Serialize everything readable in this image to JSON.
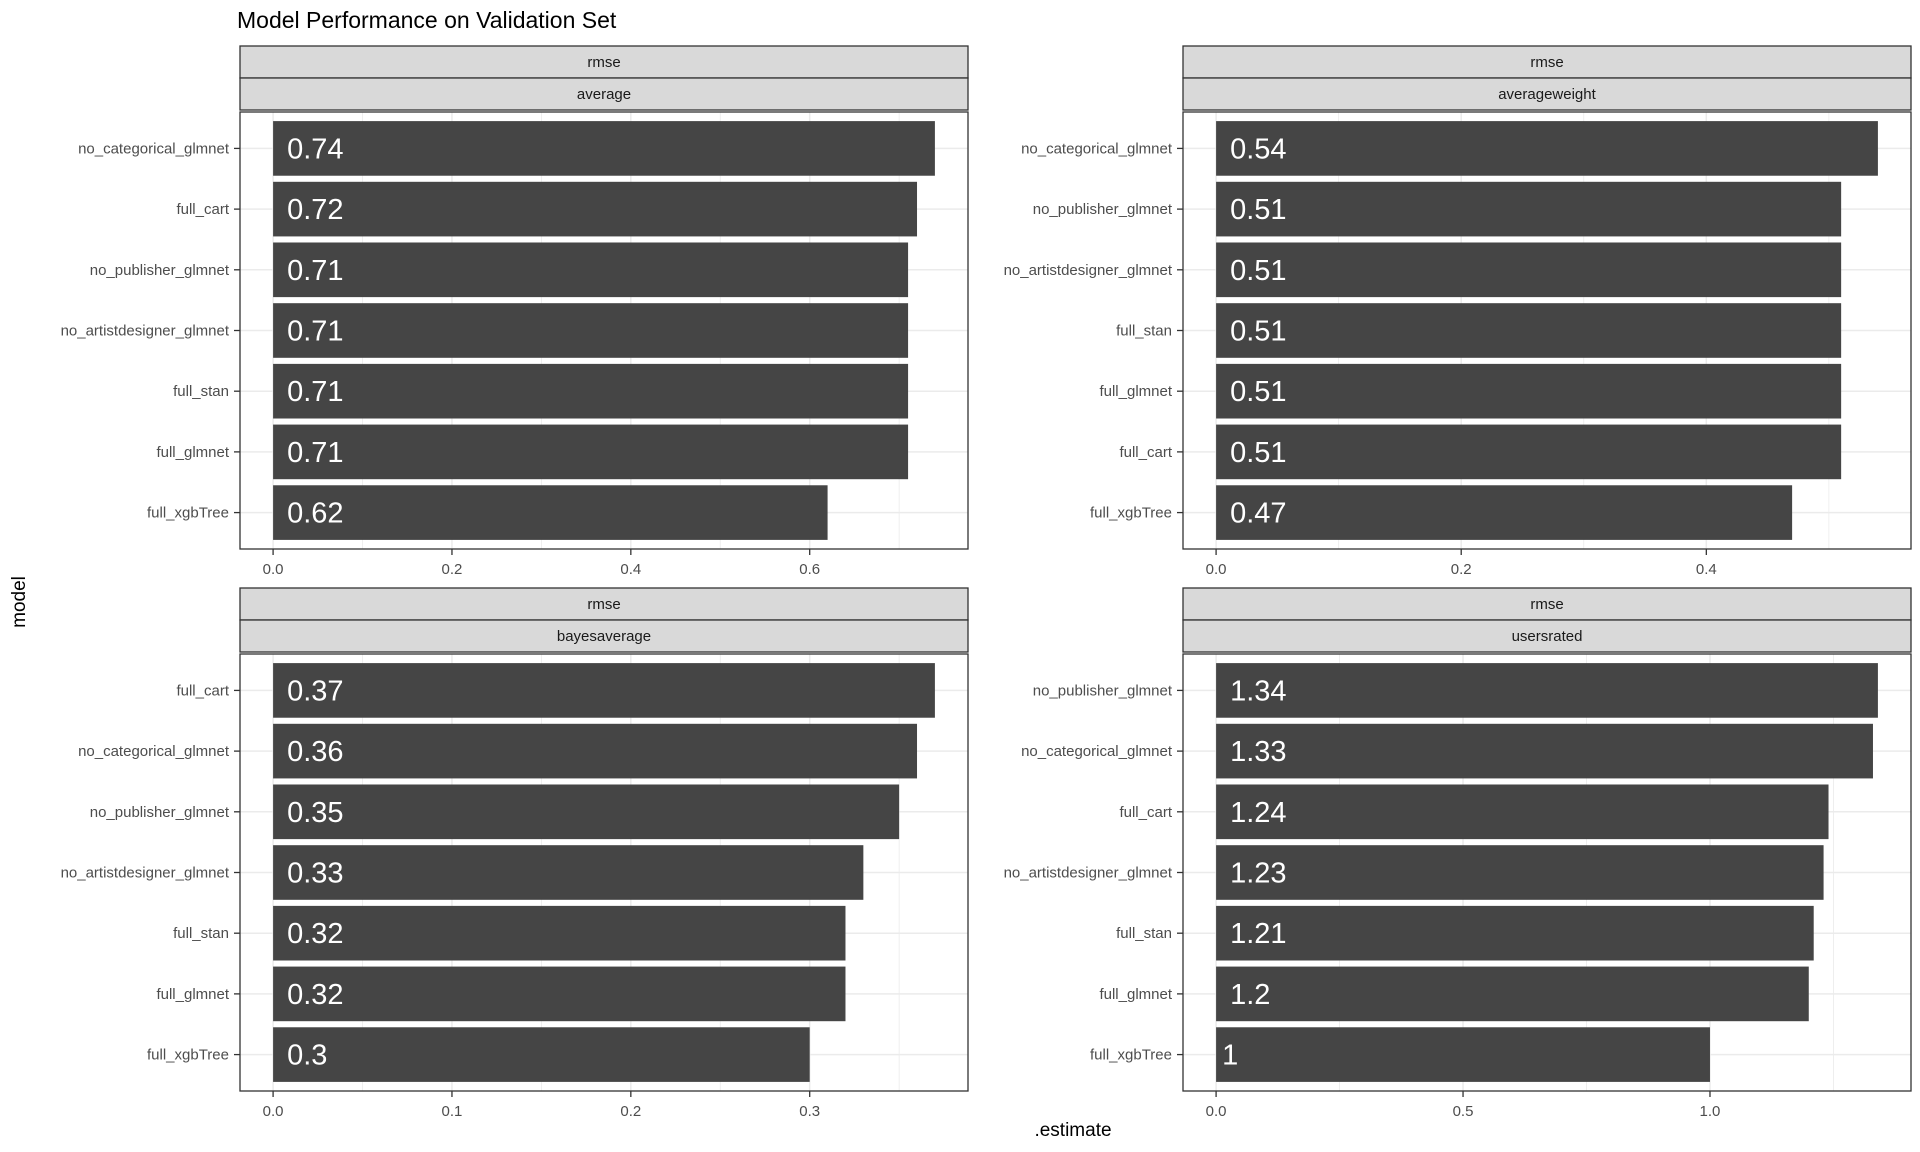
{
  "title": "Model Performance on Validation Set",
  "xlabel": ".estimate",
  "ylabel": "model",
  "colors": {
    "bar": "#454545",
    "bar_label": "#ffffff",
    "strip_fill": "#d9d9d9",
    "grid_major": "#ebebeb",
    "panel_border": "#333333"
  },
  "chart_data": [
    {
      "type": "bar",
      "orientation": "horizontal",
      "strip": [
        "rmse",
        "average"
      ],
      "categories": [
        "no_categorical_glmnet",
        "full_cart",
        "no_publisher_glmnet",
        "no_artistdesigner_glmnet",
        "full_stan",
        "full_glmnet",
        "full_xgbTree"
      ],
      "values": [
        0.74,
        0.72,
        0.71,
        0.71,
        0.71,
        0.71,
        0.62
      ],
      "labels": [
        "0.74",
        "0.72",
        "0.71",
        "0.71",
        "0.71",
        "0.71",
        "0.62"
      ],
      "xlim": [
        -0.037,
        0.777
      ],
      "xticks": [
        0,
        0.2,
        0.4,
        0.6
      ],
      "xtick_labels": [
        "0.0",
        "0.2",
        "0.4",
        "0.6"
      ],
      "grid": true
    },
    {
      "type": "bar",
      "orientation": "horizontal",
      "strip": [
        "rmse",
        "averageweight"
      ],
      "categories": [
        "no_categorical_glmnet",
        "no_publisher_glmnet",
        "no_artistdesigner_glmnet",
        "full_stan",
        "full_glmnet",
        "full_cart",
        "full_xgbTree"
      ],
      "values": [
        0.54,
        0.51,
        0.51,
        0.51,
        0.51,
        0.51,
        0.47
      ],
      "labels": [
        "0.54",
        "0.51",
        "0.51",
        "0.51",
        "0.51",
        "0.51",
        "0.47"
      ],
      "xlim": [
        -0.027,
        0.567
      ],
      "xticks": [
        0,
        0.2,
        0.4
      ],
      "xtick_labels": [
        "0.0",
        "0.2",
        "0.4"
      ],
      "grid": true
    },
    {
      "type": "bar",
      "orientation": "horizontal",
      "strip": [
        "rmse",
        "bayesaverage"
      ],
      "categories": [
        "full_cart",
        "no_categorical_glmnet",
        "no_publisher_glmnet",
        "no_artistdesigner_glmnet",
        "full_stan",
        "full_glmnet",
        "full_xgbTree"
      ],
      "values": [
        0.37,
        0.36,
        0.35,
        0.33,
        0.32,
        0.32,
        0.3
      ],
      "labels": [
        "0.37",
        "0.36",
        "0.35",
        "0.33",
        "0.32",
        "0.32",
        "0.3"
      ],
      "xlim": [
        -0.0185,
        0.3885
      ],
      "xticks": [
        0,
        0.1,
        0.2,
        0.3
      ],
      "xtick_labels": [
        "0.0",
        "0.1",
        "0.2",
        "0.3"
      ],
      "grid": true
    },
    {
      "type": "bar",
      "orientation": "horizontal",
      "strip": [
        "rmse",
        "usersrated"
      ],
      "categories": [
        "no_publisher_glmnet",
        "no_categorical_glmnet",
        "full_cart",
        "no_artistdesigner_glmnet",
        "full_stan",
        "full_glmnet",
        "full_xgbTree"
      ],
      "values": [
        1.34,
        1.33,
        1.24,
        1.23,
        1.21,
        1.2,
        1
      ],
      "labels": [
        "1.34",
        "1.33",
        "1.24",
        "1.23",
        "1.21",
        "1.2",
        "1"
      ],
      "xlim": [
        -0.067,
        1.407
      ],
      "xticks": [
        0,
        0.5,
        1.0
      ],
      "xtick_labels": [
        "0.0",
        "0.5",
        "1.0"
      ],
      "grid": true
    }
  ]
}
